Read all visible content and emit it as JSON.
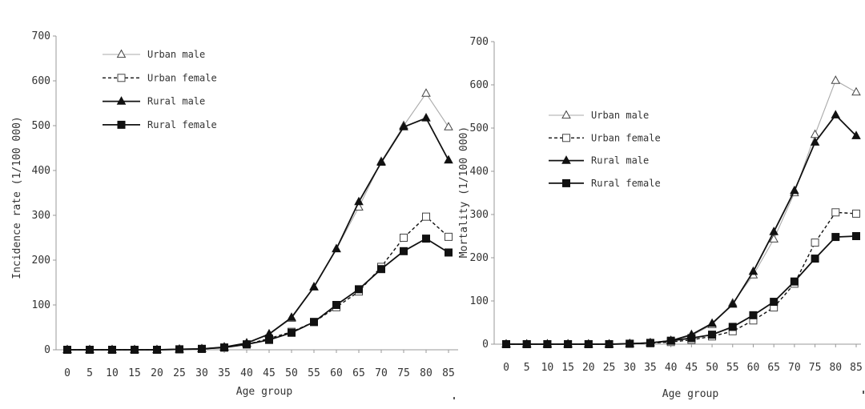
{
  "chart_data": [
    {
      "type": "line",
      "title": "",
      "xlabel": "Age group",
      "ylabel": "Incidence rate (1/100 000)",
      "ylim": [
        0,
        700
      ],
      "yticks": [
        "0",
        "100",
        "200",
        "300",
        "400",
        "500",
        "600",
        "700"
      ],
      "categories": [
        "0",
        "5",
        "10",
        "15",
        "20",
        "25",
        "30",
        "35",
        "40",
        "45",
        "50",
        "55",
        "60",
        "65",
        "70",
        "75",
        "80",
        "85"
      ],
      "grid": false,
      "legend_position": "top-left",
      "series": [
        {
          "name": "Urban male",
          "marker": "open-triangle",
          "line": "solid-thin",
          "values": [
            0,
            0,
            0,
            0,
            0,
            1,
            2,
            5,
            14,
            35,
            70,
            140,
            225,
            318,
            420,
            500,
            572,
            497
          ]
        },
        {
          "name": "Urban female",
          "marker": "open-square",
          "line": "dashed",
          "values": [
            0,
            0,
            0,
            0,
            0,
            1,
            2,
            5,
            12,
            25,
            40,
            62,
            95,
            130,
            185,
            250,
            297,
            252
          ]
        },
        {
          "name": "Rural male",
          "marker": "filled-triangle",
          "line": "solid",
          "values": [
            0,
            0,
            0,
            0,
            0,
            1,
            2,
            6,
            15,
            35,
            72,
            140,
            225,
            330,
            418,
            497,
            517,
            423
          ]
        },
        {
          "name": "Rural female",
          "marker": "filled-square",
          "line": "solid",
          "values": [
            0,
            0,
            0,
            0,
            0,
            1,
            2,
            5,
            12,
            22,
            38,
            62,
            100,
            135,
            180,
            220,
            248,
            217
          ]
        }
      ]
    },
    {
      "type": "line",
      "title": "",
      "xlabel": "Age group",
      "ylabel": "Mortality (1/100 000)",
      "ylim": [
        0,
        700
      ],
      "yticks": [
        "0",
        "100",
        "200",
        "300",
        "400",
        "500",
        "600",
        "700"
      ],
      "categories": [
        "0",
        "5",
        "10",
        "15",
        "20",
        "25",
        "30",
        "35",
        "40",
        "45",
        "50",
        "55",
        "60",
        "65",
        "70",
        "75",
        "80",
        "85"
      ],
      "grid": false,
      "legend_position": "top-left",
      "series": [
        {
          "name": "Urban male",
          "marker": "open-triangle",
          "line": "solid-thin",
          "values": [
            0,
            0,
            0,
            0,
            0,
            0,
            1,
            3,
            8,
            20,
            45,
            95,
            160,
            243,
            350,
            485,
            610,
            583
          ]
        },
        {
          "name": "Urban female",
          "marker": "open-square",
          "line": "dashed",
          "values": [
            0,
            0,
            0,
            0,
            0,
            0,
            1,
            2,
            5,
            10,
            18,
            30,
            55,
            85,
            140,
            235,
            305,
            302
          ]
        },
        {
          "name": "Rural male",
          "marker": "filled-triangle",
          "line": "solid",
          "values": [
            0,
            0,
            0,
            0,
            0,
            0,
            1,
            3,
            8,
            22,
            48,
            92,
            168,
            260,
            355,
            467,
            530,
            482
          ]
        },
        {
          "name": "Rural female",
          "marker": "filled-square",
          "line": "solid",
          "values": [
            0,
            0,
            0,
            0,
            0,
            0,
            1,
            3,
            8,
            14,
            22,
            40,
            67,
            98,
            145,
            198,
            248,
            250
          ]
        }
      ]
    }
  ]
}
